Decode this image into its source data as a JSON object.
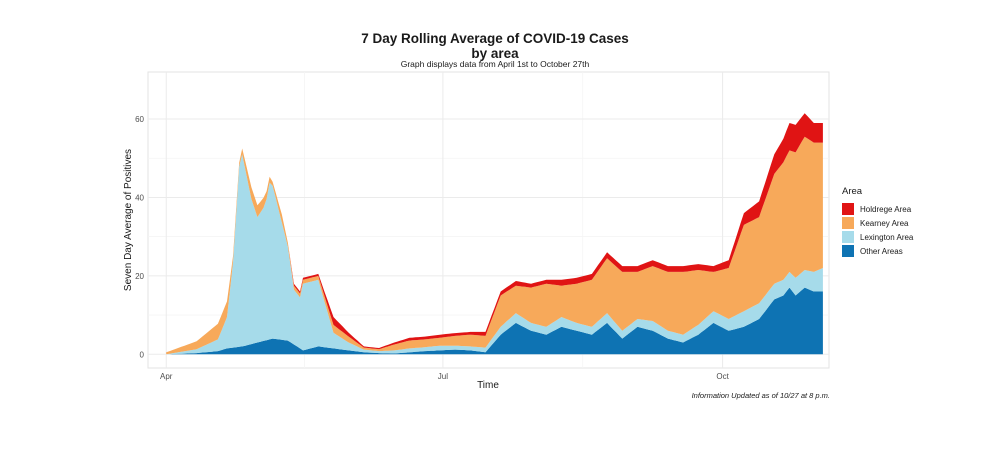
{
  "chart_data": {
    "type": "area",
    "stacked": true,
    "title_line1": "7 Day Rolling Average of COVID-19 Cases",
    "title_line2": "by area",
    "subtitle": "Graph displays data from April 1st to October 27th",
    "xlabel": "Time",
    "ylabel": "Seven Day Average of Positives",
    "x_ticks": [
      {
        "day": 0,
        "label": "Apr"
      },
      {
        "day": 91,
        "label": "Jul"
      },
      {
        "day": 183,
        "label": "Oct"
      }
    ],
    "y_ticks": [
      0,
      20,
      40,
      60
    ],
    "xlim_days": [
      -6,
      218
    ],
    "ylim": [
      -3.5,
      72
    ],
    "x_start": "2020-04-01",
    "x_end": "2020-10-27",
    "grid": true,
    "legend_position": "right",
    "series": [
      {
        "name": "Other Areas",
        "color": "#0e73b3",
        "x": [
          0,
          10,
          17,
          20,
          25,
          30,
          35,
          40,
          45,
          50,
          55,
          60,
          65,
          70,
          75,
          80,
          85,
          90,
          95,
          100,
          105,
          110,
          115,
          120,
          125,
          130,
          135,
          140,
          145,
          150,
          155,
          160,
          165,
          170,
          175,
          180,
          185,
          190,
          195,
          200,
          203,
          205,
          207,
          210,
          213,
          216
        ],
        "y": [
          0,
          0.3,
          0.8,
          1.5,
          2,
          3,
          4,
          3.5,
          1,
          2,
          1.5,
          1,
          0.5,
          0.3,
          0.2,
          0.5,
          0.8,
          1,
          1.2,
          1,
          0.5,
          5,
          8,
          6,
          5,
          7,
          6,
          5,
          8,
          4,
          7,
          6,
          4,
          3,
          5,
          8,
          6,
          7,
          9,
          14,
          15,
          17,
          15,
          17,
          16,
          16
        ]
      },
      {
        "name": "Lexington Area",
        "color": "#a6dbea",
        "x": [
          0,
          10,
          17,
          20,
          22,
          23,
          24,
          25,
          28,
          30,
          32,
          33,
          34,
          35,
          38,
          40,
          42,
          44,
          45,
          50,
          55,
          60,
          65,
          70,
          75,
          80,
          85,
          90,
          95,
          100,
          105,
          110,
          115,
          120,
          125,
          130,
          135,
          140,
          145,
          150,
          155,
          160,
          165,
          170,
          175,
          180,
          185,
          190,
          195,
          200,
          203,
          205,
          207,
          210,
          213,
          216
        ],
        "y": [
          0,
          1,
          3,
          8,
          22,
          34,
          46,
          49,
          37,
          32,
          34,
          36,
          40,
          39,
          30,
          24,
          14,
          13,
          17,
          17,
          4,
          2,
          0.7,
          0.5,
          0.8,
          1,
          1,
          1.2,
          1,
          1,
          1.2,
          2,
          2.5,
          2,
          2,
          2.5,
          2,
          2,
          2.5,
          2,
          2,
          2.5,
          2,
          2,
          2.5,
          3,
          3,
          4,
          4,
          4,
          4,
          4,
          4.5,
          4.5,
          5,
          6
        ]
      },
      {
        "name": "Kearney Area",
        "color": "#f7a95a",
        "x": [
          0,
          10,
          17,
          20,
          22,
          23,
          24,
          25,
          28,
          30,
          32,
          33,
          34,
          35,
          38,
          40,
          42,
          44,
          45,
          50,
          55,
          60,
          65,
          70,
          75,
          80,
          85,
          90,
          95,
          100,
          105,
          110,
          115,
          120,
          125,
          130,
          135,
          140,
          145,
          150,
          155,
          160,
          165,
          170,
          175,
          180,
          185,
          190,
          195,
          200,
          203,
          205,
          207,
          210,
          213,
          216
        ],
        "y": [
          0.5,
          2,
          4,
          4,
          1.5,
          1.5,
          1,
          1.5,
          3,
          3,
          2.5,
          2,
          1.5,
          1,
          2,
          1,
          1,
          1,
          1,
          1,
          2,
          1.5,
          0.5,
          0.5,
          1.5,
          2,
          2,
          2,
          2.5,
          3,
          3,
          8,
          7,
          9,
          11,
          8,
          10,
          12,
          14,
          15,
          12,
          14,
          15,
          16,
          14,
          10,
          13,
          22,
          22,
          28,
          30,
          31,
          32,
          34,
          33,
          32
        ]
      },
      {
        "name": "Holdrege Area",
        "color": "#e01414",
        "x": [
          0,
          10,
          17,
          20,
          22,
          23,
          24,
          25,
          28,
          30,
          32,
          33,
          34,
          35,
          38,
          40,
          42,
          44,
          45,
          50,
          55,
          60,
          65,
          70,
          75,
          80,
          85,
          90,
          95,
          100,
          105,
          110,
          115,
          120,
          125,
          130,
          135,
          140,
          145,
          150,
          155,
          160,
          165,
          170,
          175,
          180,
          185,
          190,
          195,
          200,
          203,
          205,
          207,
          210,
          213,
          216
        ],
        "y": [
          0,
          0,
          0,
          0,
          0,
          0,
          0,
          0,
          0,
          0,
          0,
          0,
          0,
          0,
          0,
          0,
          0.5,
          0.5,
          0.5,
          0.5,
          2,
          1,
          0.3,
          0.3,
          0.5,
          0.7,
          0.7,
          0.8,
          0.7,
          0.7,
          1,
          1,
          1.2,
          1,
          1,
          1.5,
          1.5,
          1.5,
          1.5,
          1.5,
          1.5,
          1.5,
          1.5,
          1.5,
          1.5,
          1.5,
          2,
          3,
          4,
          5,
          6,
          7,
          7,
          6,
          5,
          5
        ]
      }
    ]
  },
  "legend": {
    "title": "Area",
    "items": [
      {
        "label": "Holdrege Area",
        "color": "#e01414"
      },
      {
        "label": "Kearney Area",
        "color": "#f7a95a"
      },
      {
        "label": "Lexington Area",
        "color": "#a6dbea"
      },
      {
        "label": "Other Areas",
        "color": "#0e73b3"
      }
    ]
  },
  "caption": "Information Updated as of 10/27 at 8 p.m."
}
